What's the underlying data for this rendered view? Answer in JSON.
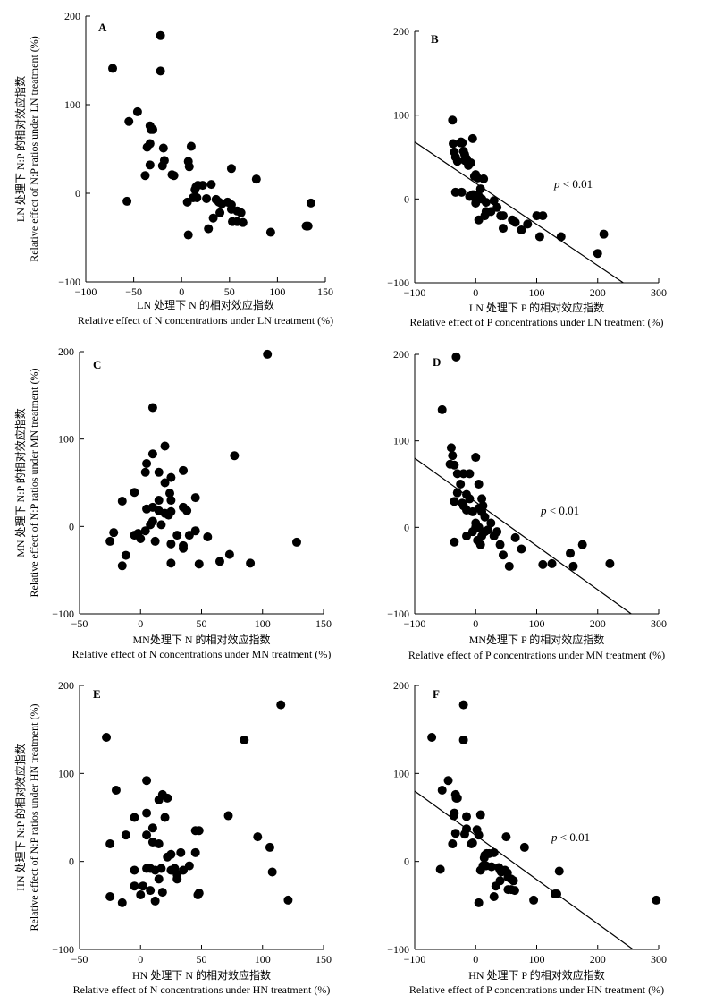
{
  "chart_data": [
    {
      "panel": "A",
      "type": "scatter",
      "xlabel_cn": "LN 处理下 N 的相对效应指数",
      "xlabel_en": "Relative effect of N concentrations under LN treatment (%)",
      "ylabel_cn": "LN 处理下 N:P 的相对效应指数",
      "ylabel_en": "Relative effect of N:P ratios under LN treatment (%)",
      "xlim": [
        -100,
        150
      ],
      "ylim": [
        -100,
        200
      ],
      "xticks": [
        -100,
        -50,
        0,
        50,
        100,
        150
      ],
      "yticks": [
        -100,
        0,
        100,
        200
      ],
      "annotation": "",
      "fit": null,
      "points": [
        [
          -72,
          141
        ],
        [
          -22,
          178
        ],
        [
          -22,
          138
        ],
        [
          -55,
          81
        ],
        [
          -46,
          92
        ],
        [
          -33,
          76
        ],
        [
          -32,
          72
        ],
        [
          -30,
          72
        ],
        [
          -33,
          56
        ],
        [
          -36,
          52
        ],
        [
          -33,
          32
        ],
        [
          -38,
          20
        ],
        [
          -19,
          51
        ],
        [
          -20,
          31
        ],
        [
          -18,
          37
        ],
        [
          -10,
          21
        ],
        [
          -8,
          20
        ],
        [
          -57,
          -9
        ],
        [
          10,
          53
        ],
        [
          7,
          36
        ],
        [
          8,
          30
        ],
        [
          15,
          7
        ],
        [
          17,
          9
        ],
        [
          14,
          4
        ],
        [
          22,
          9
        ],
        [
          31,
          10
        ],
        [
          12,
          -5
        ],
        [
          16,
          -5
        ],
        [
          6,
          -10
        ],
        [
          26,
          -6
        ],
        [
          52,
          28
        ],
        [
          78,
          16
        ],
        [
          36,
          -7
        ],
        [
          39,
          -10
        ],
        [
          42,
          -12
        ],
        [
          48,
          -10
        ],
        [
          52,
          -13
        ],
        [
          58,
          -20
        ],
        [
          52,
          -18
        ],
        [
          40,
          -22
        ],
        [
          33,
          -28
        ],
        [
          53,
          -32
        ],
        [
          58,
          -32
        ],
        [
          62,
          -22
        ],
        [
          64,
          -33
        ],
        [
          28,
          -40
        ],
        [
          7,
          -47
        ],
        [
          93,
          -44
        ],
        [
          130,
          -37
        ],
        [
          132,
          -37
        ],
        [
          135,
          -11
        ]
      ]
    },
    {
      "panel": "B",
      "type": "scatter",
      "xlabel_cn": "LN 处理下 P 的相对效应指数",
      "xlabel_en": "Relative effect of P concentrations under LN treatment (%)",
      "ylabel_cn": "",
      "ylabel_en": "",
      "xlim": [
        -100,
        300
      ],
      "ylim": [
        -100,
        200
      ],
      "xticks": [
        -100,
        0,
        100,
        200,
        300
      ],
      "yticks": [
        -100,
        0,
        100,
        200
      ],
      "annotation": "p < 0.01",
      "fit": [
        [
          -100,
          68
        ],
        [
          242,
          -100
        ]
      ],
      "points": [
        [
          -38,
          94
        ],
        [
          -37,
          66
        ],
        [
          -35,
          56
        ],
        [
          -33,
          50
        ],
        [
          -30,
          45
        ],
        [
          -25,
          67
        ],
        [
          -24,
          68
        ],
        [
          -20,
          57
        ],
        [
          -18,
          53
        ],
        [
          -15,
          48
        ],
        [
          -12,
          40
        ],
        [
          -8,
          43
        ],
        [
          -5,
          72
        ],
        [
          -2,
          27
        ],
        [
          0,
          29
        ],
        [
          3,
          25
        ],
        [
          -5,
          5
        ],
        [
          -3,
          5
        ],
        [
          0,
          0
        ],
        [
          4,
          5
        ],
        [
          8,
          12
        ],
        [
          13,
          24
        ],
        [
          17,
          -4
        ],
        [
          -33,
          8
        ],
        [
          -23,
          8
        ],
        [
          -10,
          3
        ],
        [
          0,
          -5
        ],
        [
          5,
          3
        ],
        [
          10,
          0
        ],
        [
          17,
          -15
        ],
        [
          25,
          -15
        ],
        [
          30,
          -2
        ],
        [
          35,
          -10
        ],
        [
          41,
          -20
        ],
        [
          45,
          -20
        ],
        [
          45,
          -35
        ],
        [
          60,
          -25
        ],
        [
          65,
          -28
        ],
        [
          75,
          -37
        ],
        [
          85,
          -30
        ],
        [
          100,
          -20
        ],
        [
          105,
          -45
        ],
        [
          110,
          -20
        ],
        [
          140,
          -45
        ],
        [
          200,
          -65
        ],
        [
          210,
          -42
        ],
        [
          5,
          -25
        ],
        [
          15,
          -20
        ],
        [
          -22,
          67
        ],
        [
          -18,
          46
        ]
      ]
    },
    {
      "panel": "C",
      "type": "scatter",
      "xlabel_cn": "MN处理下 N 的相对效应指数",
      "xlabel_en": "Relative effect of N concentrations under MN treatment (%)",
      "ylabel_cn": "MN 处理下 N:P 的相对效应指数",
      "ylabel_en": "Relative effect of N:P ratios under MN treatment (%)",
      "xlim": [
        -50,
        150
      ],
      "ylim": [
        -100,
        200
      ],
      "xticks": [
        -50,
        0,
        50,
        100,
        150
      ],
      "yticks": [
        -100,
        0,
        100,
        200
      ],
      "annotation": "",
      "fit": null,
      "points": [
        [
          104,
          197
        ],
        [
          10,
          136
        ],
        [
          20,
          92
        ],
        [
          77,
          81
        ],
        [
          10,
          83
        ],
        [
          5,
          72
        ],
        [
          4,
          62
        ],
        [
          15,
          62
        ],
        [
          25,
          56
        ],
        [
          35,
          64
        ],
        [
          20,
          50
        ],
        [
          45,
          33
        ],
        [
          24,
          38
        ],
        [
          25,
          30
        ],
        [
          15,
          30
        ],
        [
          -5,
          39
        ],
        [
          -15,
          29
        ],
        [
          5,
          20
        ],
        [
          10,
          22
        ],
        [
          15,
          18
        ],
        [
          23,
          13
        ],
        [
          25,
          17
        ],
        [
          35,
          22
        ],
        [
          38,
          18
        ],
        [
          -25,
          -17
        ],
        [
          -22,
          -7
        ],
        [
          -15,
          -45
        ],
        [
          -12,
          -33
        ],
        [
          -5,
          -10
        ],
        [
          0,
          -14
        ],
        [
          4,
          -5
        ],
        [
          8,
          2
        ],
        [
          10,
          6
        ],
        [
          17,
          2
        ],
        [
          20,
          15
        ],
        [
          25,
          -20
        ],
        [
          30,
          -10
        ],
        [
          35,
          -25
        ],
        [
          45,
          -5
        ],
        [
          48,
          -43
        ],
        [
          55,
          -12
        ],
        [
          65,
          -40
        ],
        [
          73,
          -32
        ],
        [
          90,
          -42
        ],
        [
          128,
          -18
        ],
        [
          -2,
          -8
        ],
        [
          12,
          -17
        ],
        [
          25,
          -42
        ],
        [
          35,
          -22
        ],
        [
          40,
          -10
        ]
      ]
    },
    {
      "panel": "D",
      "type": "scatter",
      "xlabel_cn": "MN处理下 P 的相对效应指数",
      "xlabel_en": "Relative effect of P concentrations under MN treatment (%)",
      "ylabel_cn": "",
      "ylabel_en": "",
      "xlim": [
        -100,
        300
      ],
      "ylim": [
        -100,
        200
      ],
      "xticks": [
        -100,
        0,
        100,
        200,
        300
      ],
      "yticks": [
        -100,
        0,
        100,
        200
      ],
      "annotation": "p < 0.01",
      "fit": [
        [
          -100,
          80
        ],
        [
          255,
          -100
        ]
      ],
      "points": [
        [
          -32,
          197
        ],
        [
          -55,
          136
        ],
        [
          -40,
          92
        ],
        [
          -38,
          83
        ],
        [
          -35,
          72
        ],
        [
          -30,
          62
        ],
        [
          -20,
          62
        ],
        [
          -25,
          50
        ],
        [
          0,
          81
        ],
        [
          5,
          50
        ],
        [
          -15,
          38
        ],
        [
          -10,
          33
        ],
        [
          10,
          33
        ],
        [
          -30,
          40
        ],
        [
          -35,
          30
        ],
        [
          -20,
          25
        ],
        [
          -15,
          20
        ],
        [
          -5,
          18
        ],
        [
          5,
          22
        ],
        [
          10,
          18
        ],
        [
          15,
          12
        ],
        [
          -35,
          -17
        ],
        [
          -15,
          -10
        ],
        [
          -5,
          -5
        ],
        [
          0,
          5
        ],
        [
          5,
          0
        ],
        [
          10,
          -10
        ],
        [
          15,
          -5
        ],
        [
          25,
          5
        ],
        [
          30,
          -10
        ],
        [
          35,
          -5
        ],
        [
          45,
          -32
        ],
        [
          55,
          -45
        ],
        [
          65,
          -12
        ],
        [
          75,
          -25
        ],
        [
          110,
          -43
        ],
        [
          125,
          -42
        ],
        [
          155,
          -30
        ],
        [
          160,
          -45
        ],
        [
          175,
          -20
        ],
        [
          220,
          -42
        ],
        [
          0,
          0
        ],
        [
          3,
          -15
        ],
        [
          8,
          -20
        ],
        [
          20,
          -3
        ],
        [
          -10,
          62
        ],
        [
          -42,
          73
        ],
        [
          -22,
          28
        ],
        [
          12,
          25
        ],
        [
          40,
          -20
        ]
      ]
    },
    {
      "panel": "E",
      "type": "scatter",
      "xlabel_cn": "HN 处理下 N 的相对效应指数",
      "xlabel_en": "Relative effect of N concentrations under HN treatment (%)",
      "ylabel_cn": "HN 处理下 N:P 的相对效应指数",
      "ylabel_en": "Relative effect of N:P ratios under HN treatment (%)",
      "xlim": [
        -50,
        150
      ],
      "ylim": [
        -100,
        200
      ],
      "xticks": [
        -50,
        0,
        50,
        100,
        150
      ],
      "yticks": [
        -100,
        0,
        100,
        200
      ],
      "annotation": "",
      "fit": null,
      "points": [
        [
          -28,
          141
        ],
        [
          -20,
          81
        ],
        [
          115,
          178
        ],
        [
          85,
          138
        ],
        [
          5,
          92
        ],
        [
          15,
          70
        ],
        [
          18,
          76
        ],
        [
          22,
          72
        ],
        [
          72,
          52
        ],
        [
          5,
          55
        ],
        [
          -5,
          50
        ],
        [
          10,
          38
        ],
        [
          20,
          50
        ],
        [
          48,
          35
        ],
        [
          45,
          35
        ],
        [
          -12,
          30
        ],
        [
          -25,
          20
        ],
        [
          5,
          30
        ],
        [
          -25,
          -40
        ],
        [
          -15,
          -47
        ],
        [
          -5,
          -28
        ],
        [
          2,
          -28
        ],
        [
          5,
          -8
        ],
        [
          8,
          -8
        ],
        [
          12,
          -10
        ],
        [
          15,
          20
        ],
        [
          10,
          22
        ],
        [
          25,
          -10
        ],
        [
          28,
          -8
        ],
        [
          30,
          -15
        ],
        [
          35,
          -10
        ],
        [
          40,
          -5
        ],
        [
          45,
          10
        ],
        [
          48,
          -36
        ],
        [
          8,
          -33
        ],
        [
          12,
          -45
        ],
        [
          15,
          -20
        ],
        [
          18,
          -35
        ],
        [
          22,
          5
        ],
        [
          30,
          -20
        ],
        [
          96,
          28
        ],
        [
          106,
          16
        ],
        [
          108,
          -12
        ],
        [
          121,
          -44
        ],
        [
          -5,
          -10
        ],
        [
          0,
          -38
        ],
        [
          25,
          8
        ],
        [
          33,
          10
        ],
        [
          47,
          -38
        ],
        [
          17,
          -8
        ]
      ]
    },
    {
      "panel": "F",
      "type": "scatter",
      "xlabel_cn": "HN 处理下 P 的相对效应指数",
      "xlabel_en": "Relative effect of P concentrations under HN treatment (%)",
      "ylabel_cn": "",
      "ylabel_en": "",
      "xlim": [
        -100,
        300
      ],
      "ylim": [
        -100,
        200
      ],
      "xticks": [
        -100,
        0,
        100,
        200,
        300
      ],
      "yticks": [
        -100,
        0,
        100,
        200
      ],
      "annotation": "p < 0.01",
      "fit": [
        [
          -100,
          80
        ],
        [
          258,
          -100
        ]
      ],
      "points": [
        [
          -72,
          141
        ],
        [
          -20,
          178
        ],
        [
          -20,
          138
        ],
        [
          -55,
          81
        ],
        [
          -45,
          92
        ],
        [
          -33,
          76
        ],
        [
          -32,
          72
        ],
        [
          -30,
          72
        ],
        [
          -35,
          55
        ],
        [
          -36,
          52
        ],
        [
          -33,
          32
        ],
        [
          -38,
          20
        ],
        [
          -15,
          51
        ],
        [
          -18,
          31
        ],
        [
          -15,
          37
        ],
        [
          -5,
          21
        ],
        [
          -7,
          20
        ],
        [
          -58,
          -9
        ],
        [
          8,
          53
        ],
        [
          2,
          36
        ],
        [
          5,
          30
        ],
        [
          15,
          7
        ],
        [
          18,
          9
        ],
        [
          14,
          4
        ],
        [
          22,
          9
        ],
        [
          30,
          10
        ],
        [
          12,
          -5
        ],
        [
          17,
          -5
        ],
        [
          8,
          -10
        ],
        [
          26,
          -6
        ],
        [
          50,
          28
        ],
        [
          80,
          16
        ],
        [
          38,
          -7
        ],
        [
          40,
          -10
        ],
        [
          42,
          -12
        ],
        [
          48,
          -10
        ],
        [
          52,
          -13
        ],
        [
          58,
          -20
        ],
        [
          53,
          -18
        ],
        [
          40,
          -22
        ],
        [
          33,
          -28
        ],
        [
          53,
          -32
        ],
        [
          58,
          -32
        ],
        [
          62,
          -22
        ],
        [
          64,
          -33
        ],
        [
          30,
          -40
        ],
        [
          5,
          -47
        ],
        [
          95,
          -44
        ],
        [
          130,
          -37
        ],
        [
          133,
          -37
        ],
        [
          137,
          -11
        ],
        [
          296,
          -44
        ]
      ]
    }
  ]
}
